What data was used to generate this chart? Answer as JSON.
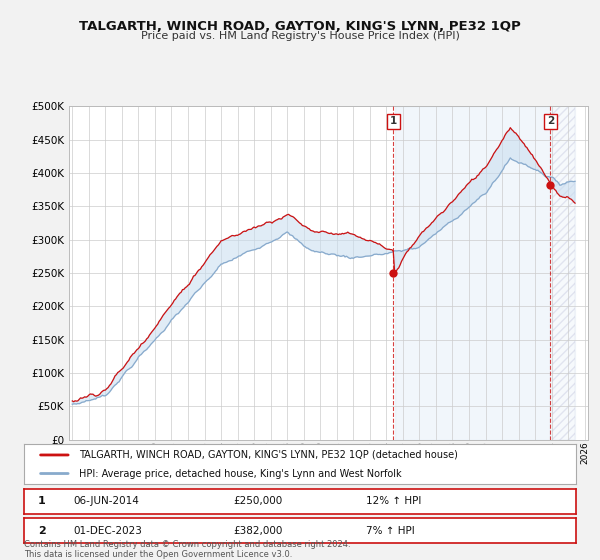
{
  "title": "TALGARTH, WINCH ROAD, GAYTON, KING'S LYNN, PE32 1QP",
  "subtitle": "Price paid vs. HM Land Registry's House Price Index (HPI)",
  "legend_line1": "TALGARTH, WINCH ROAD, GAYTON, KING'S LYNN, PE32 1QP (detached house)",
  "legend_line2": "HPI: Average price, detached house, King's Lynn and West Norfolk",
  "annotation1_label": "1",
  "annotation1_date": "06-JUN-2014",
  "annotation1_price": "£250,000",
  "annotation1_hpi": "12% ↑ HPI",
  "annotation2_label": "2",
  "annotation2_date": "01-DEC-2023",
  "annotation2_price": "£382,000",
  "annotation2_hpi": "7% ↑ HPI",
  "footer": "Contains HM Land Registry data © Crown copyright and database right 2024.\nThis data is licensed under the Open Government Licence v3.0.",
  "red_color": "#cc1111",
  "blue_color": "#88aacc",
  "blue_fill_color": "#c8ddf0",
  "grid_color": "#cccccc",
  "bg_color": "#f2f2f2",
  "plot_bg": "#ffffff",
  "ylim": [
    0,
    500000
  ],
  "yticks": [
    0,
    50000,
    100000,
    150000,
    200000,
    250000,
    300000,
    350000,
    400000,
    450000,
    500000
  ],
  "sale1_x": 2014.42,
  "sale1_y": 250000,
  "sale2_x": 2023.92,
  "sale2_y": 382000,
  "xmin": 1994.8,
  "xmax": 2026.2
}
